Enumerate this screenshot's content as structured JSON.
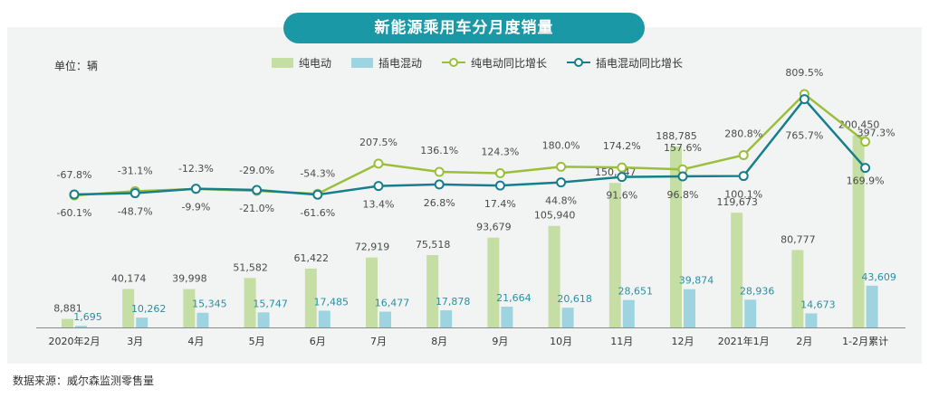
{
  "title": "新能源乘用车分月度销量",
  "unit_label": "单位：辆",
  "source_note": "数据来源：威尔森监测零售量",
  "legend": {
    "ev_bar": "纯电动",
    "phev_bar": "插电混动",
    "ev_line": "纯电动同比增长",
    "phev_line": "插电混动同比增长"
  },
  "colors": {
    "ev_bar": "#c5dea3",
    "phev_bar": "#9ed4e0",
    "ev_line": "#9cbf3b",
    "phev_line": "#177e8c",
    "title_bg": "#1a98a6",
    "panel_bg": "#f2f4f4"
  },
  "chart_data": {
    "type": "bar",
    "categories": [
      "2020年2月",
      "3月",
      "4月",
      "5月",
      "6月",
      "7月",
      "8月",
      "9月",
      "10月",
      "11月",
      "12月",
      "2021年1月",
      "2月",
      "1-2月累计"
    ],
    "series": [
      {
        "name": "纯电动",
        "type": "bar",
        "values": [
          8881,
          40174,
          39998,
          51582,
          61422,
          72919,
          75518,
          93679,
          105940,
          150747,
          188785,
          119673,
          80777,
          200450
        ],
        "labels": [
          "8,881",
          "40,174",
          "39,998",
          "51,582",
          "61,422",
          "72,919",
          "75,518",
          "93,679",
          "105,940",
          "150,747",
          "188,785",
          "119,673",
          "80,777",
          "200,450"
        ]
      },
      {
        "name": "插电混动",
        "type": "bar",
        "values": [
          1695,
          10262,
          15345,
          15747,
          17485,
          16477,
          17878,
          21664,
          20618,
          28651,
          39874,
          28936,
          14673,
          43609
        ],
        "labels": [
          "1,695",
          "10,262",
          "15,345",
          "15,747",
          "17,485",
          "16,477",
          "17,878",
          "21,664",
          "20,618",
          "28,651",
          "39,874",
          "28,936",
          "14,673",
          "43,609"
        ]
      },
      {
        "name": "纯电动同比增长",
        "type": "line",
        "values": [
          -67.8,
          -31.1,
          -12.3,
          -29.0,
          -54.3,
          207.5,
          136.1,
          124.3,
          180.0,
          174.2,
          157.6,
          280.8,
          809.5,
          397.3
        ],
        "labels": [
          "-67.8%",
          "-31.1%",
          "-12.3%",
          "-29.0%",
          "-54.3%",
          "207.5%",
          "136.1%",
          "124.3%",
          "180.0%",
          "174.2%",
          "157.6%",
          "280.8%",
          "809.5%",
          "397.3%"
        ]
      },
      {
        "name": "插电混动同比增长",
        "type": "line",
        "values": [
          -60.1,
          -48.7,
          -9.9,
          -21.0,
          -61.6,
          13.4,
          26.8,
          17.4,
          44.8,
          91.6,
          96.8,
          100.1,
          765.7,
          169.9
        ],
        "labels": [
          "-60.1%",
          "-48.7%",
          "-9.9%",
          "-21.0%",
          "-61.6%",
          "13.4%",
          "26.8%",
          "17.4%",
          "44.8%",
          "91.6%",
          "96.8%",
          "100.1%",
          "765.7%",
          "169.9%"
        ]
      }
    ],
    "ylabel": "单位：辆",
    "grid": false,
    "legend_position": "top"
  }
}
